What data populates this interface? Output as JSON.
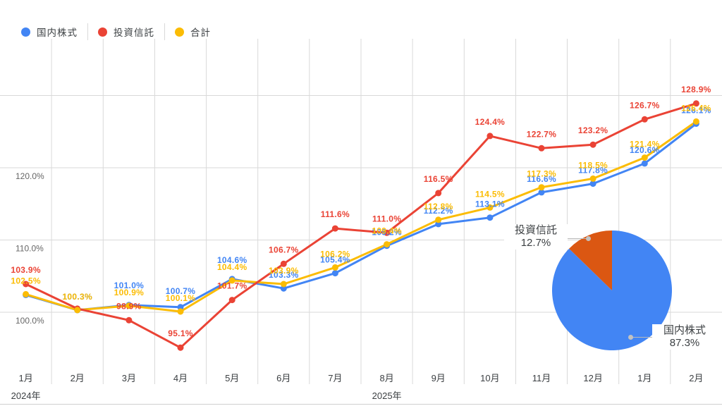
{
  "legend": {
    "items": [
      {
        "key": "domestic-stocks",
        "label": "国内株式",
        "color": "#4285f4"
      },
      {
        "key": "investment-trusts",
        "label": "投資信託",
        "color": "#ea4335"
      },
      {
        "key": "total",
        "label": "合計",
        "color": "#fbbc04"
      }
    ]
  },
  "chart_data": [
    {
      "type": "line",
      "categories": [
        "1月",
        "2月",
        "3月",
        "4月",
        "5月",
        "6月",
        "7月",
        "8月",
        "9月",
        "10月",
        "11月",
        "12月",
        "1月",
        "2月"
      ],
      "year_markers": [
        {
          "label": "2024年",
          "month_index": 0
        },
        {
          "label": "2025年",
          "month_index": 7
        }
      ],
      "ylim": [
        93.5,
        131.5
      ],
      "yticks": [
        {
          "value": 100,
          "label": "100.0%"
        },
        {
          "value": 110,
          "label": "110.0%"
        },
        {
          "value": 120,
          "label": "120.0%"
        },
        {
          "value": 130,
          "label": ""
        }
      ],
      "grid": true,
      "legend_position": "top-left",
      "series": [
        {
          "name": "国内株式",
          "key": "domestic-stocks",
          "color": "#4285f4",
          "values": [
            102.4,
            100.3,
            101.0,
            100.7,
            104.6,
            103.3,
            105.4,
            109.2,
            112.2,
            113.1,
            116.6,
            117.8,
            120.6,
            126.1
          ],
          "labels": [
            "",
            "100.3%",
            "101.0%",
            "100.7%",
            "104.6%",
            "103.3%",
            "105.4%",
            "109.2%",
            "112.2%",
            "113.1%",
            "116.6%",
            "117.8%",
            "120.6%",
            "126.1%"
          ]
        },
        {
          "name": "投資信託",
          "key": "investment-trusts",
          "color": "#ea4335",
          "values": [
            103.9,
            100.5,
            98.9,
            95.1,
            101.7,
            106.7,
            111.6,
            111.0,
            116.5,
            124.4,
            122.7,
            123.2,
            126.7,
            128.9
          ],
          "labels": [
            "103.9%",
            "",
            "98.9%",
            "95.1%",
            "101.7%",
            "106.7%",
            "111.6%",
            "111.0%",
            "116.5%",
            "124.4%",
            "122.7%",
            "123.2%",
            "126.7%",
            "128.9%"
          ]
        },
        {
          "name": "合計",
          "key": "total",
          "color": "#fbbc04",
          "values": [
            102.5,
            100.3,
            100.9,
            100.1,
            104.4,
            103.9,
            106.2,
            109.4,
            112.8,
            114.5,
            117.3,
            118.5,
            121.4,
            126.4
          ],
          "labels": [
            "102.5%",
            "100.3%",
            "100.9%",
            "100.1%",
            "104.4%",
            "103.9%",
            "106.2%",
            "109.4%",
            "112.8%",
            "114.5%",
            "117.3%",
            "118.5%",
            "121.4%",
            "126.4%"
          ]
        }
      ]
    },
    {
      "type": "pie",
      "slices": [
        {
          "label": "国内株式",
          "value": 87.3,
          "display": "87.3%",
          "color": "#4285f4"
        },
        {
          "label": "投資信託",
          "value": 12.7,
          "display": "12.7%",
          "color": "#db5712"
        }
      ]
    }
  ]
}
